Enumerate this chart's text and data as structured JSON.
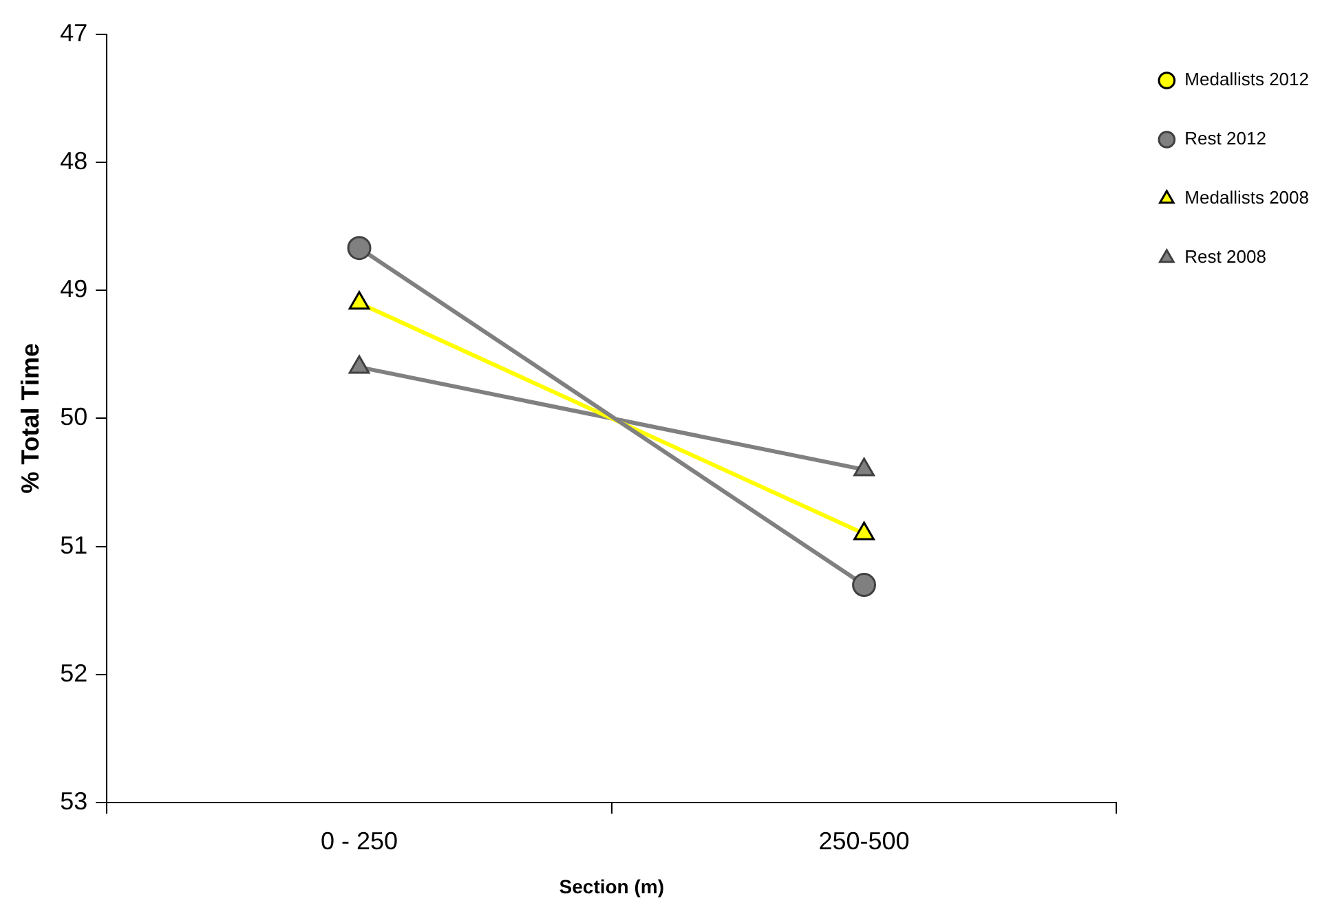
{
  "chart_data": {
    "type": "line",
    "xlabel": "Section (m)",
    "ylabel": "% Total Time",
    "categories": [
      "0 - 250",
      "250-500"
    ],
    "series": [
      {
        "name": "Medallists 2012",
        "color": "#ffff00",
        "marker": "circle",
        "values": [
          null,
          null
        ]
      },
      {
        "name": "Rest 2012",
        "color": "#808080",
        "marker": "circle",
        "values": [
          48.67,
          51.3
        ]
      },
      {
        "name": "Medallists 2008",
        "color": "#ffff00",
        "marker": "triangle",
        "values": [
          49.1,
          50.9
        ]
      },
      {
        "name": "Rest 2008",
        "color": "#808080",
        "marker": "triangle",
        "values": [
          49.6,
          50.4
        ]
      }
    ],
    "ylim": [
      53,
      47
    ],
    "yticks": [
      47,
      48,
      49,
      50,
      51,
      52,
      53
    ],
    "grid": false,
    "legend": "top right"
  }
}
